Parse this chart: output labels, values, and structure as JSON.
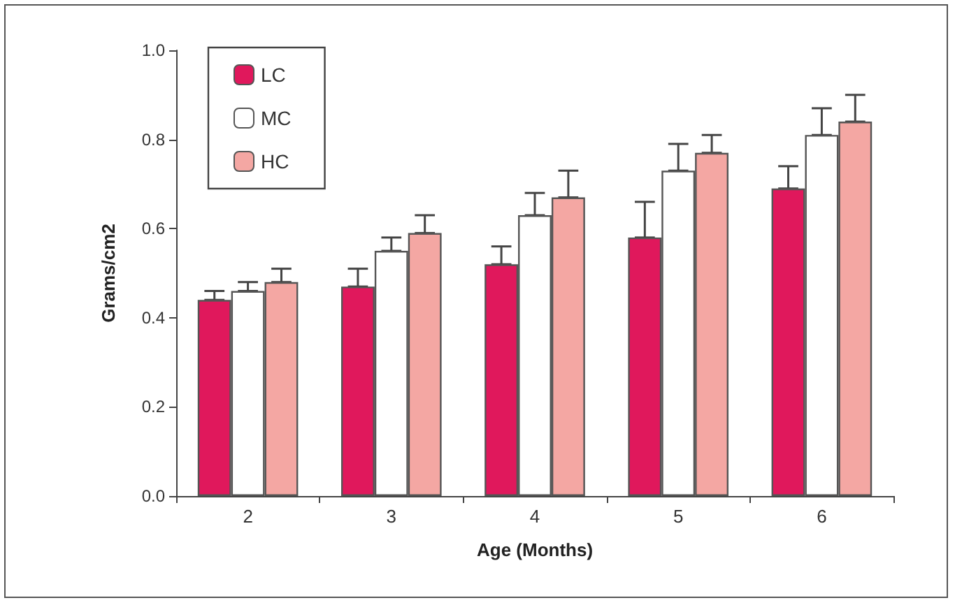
{
  "chart_data": {
    "type": "bar",
    "xlabel": "Age (Months)",
    "ylabel": "Grams/cm2",
    "categories": [
      "2",
      "3",
      "4",
      "5",
      "6"
    ],
    "series": [
      {
        "name": "LC",
        "color": "#e0185c",
        "values": [
          0.44,
          0.47,
          0.52,
          0.58,
          0.69
        ],
        "errors": [
          [
            0.44,
            0.46
          ],
          [
            0.47,
            0.51
          ],
          [
            0.52,
            0.56
          ],
          [
            0.58,
            0.66
          ],
          [
            0.69,
            0.74
          ]
        ]
      },
      {
        "name": "MC",
        "color": "#ffffff",
        "values": [
          0.46,
          0.55,
          0.63,
          0.73,
          0.81
        ],
        "errors": [
          [
            0.46,
            0.48
          ],
          [
            0.55,
            0.58
          ],
          [
            0.63,
            0.68
          ],
          [
            0.73,
            0.79
          ],
          [
            0.81,
            0.87
          ]
        ]
      },
      {
        "name": "HC",
        "color": "#f4a7a3",
        "values": [
          0.48,
          0.59,
          0.67,
          0.77,
          0.84
        ],
        "errors": [
          [
            0.48,
            0.51
          ],
          [
            0.59,
            0.63
          ],
          [
            0.67,
            0.73
          ],
          [
            0.77,
            0.81
          ],
          [
            0.84,
            0.9
          ]
        ]
      }
    ],
    "ylim": [
      0,
      1.0
    ],
    "yticks": [
      {
        "value": 0,
        "label": "0.0"
      },
      {
        "value": 0.2,
        "label": "0.2"
      },
      {
        "value": 0.4,
        "label": "0.4"
      },
      {
        "value": 0.6,
        "label": "0.6"
      },
      {
        "value": 0.8,
        "label": "0.8"
      },
      {
        "value": 1.0,
        "label": "1.0"
      }
    ],
    "grid": false,
    "legend": "top left"
  }
}
